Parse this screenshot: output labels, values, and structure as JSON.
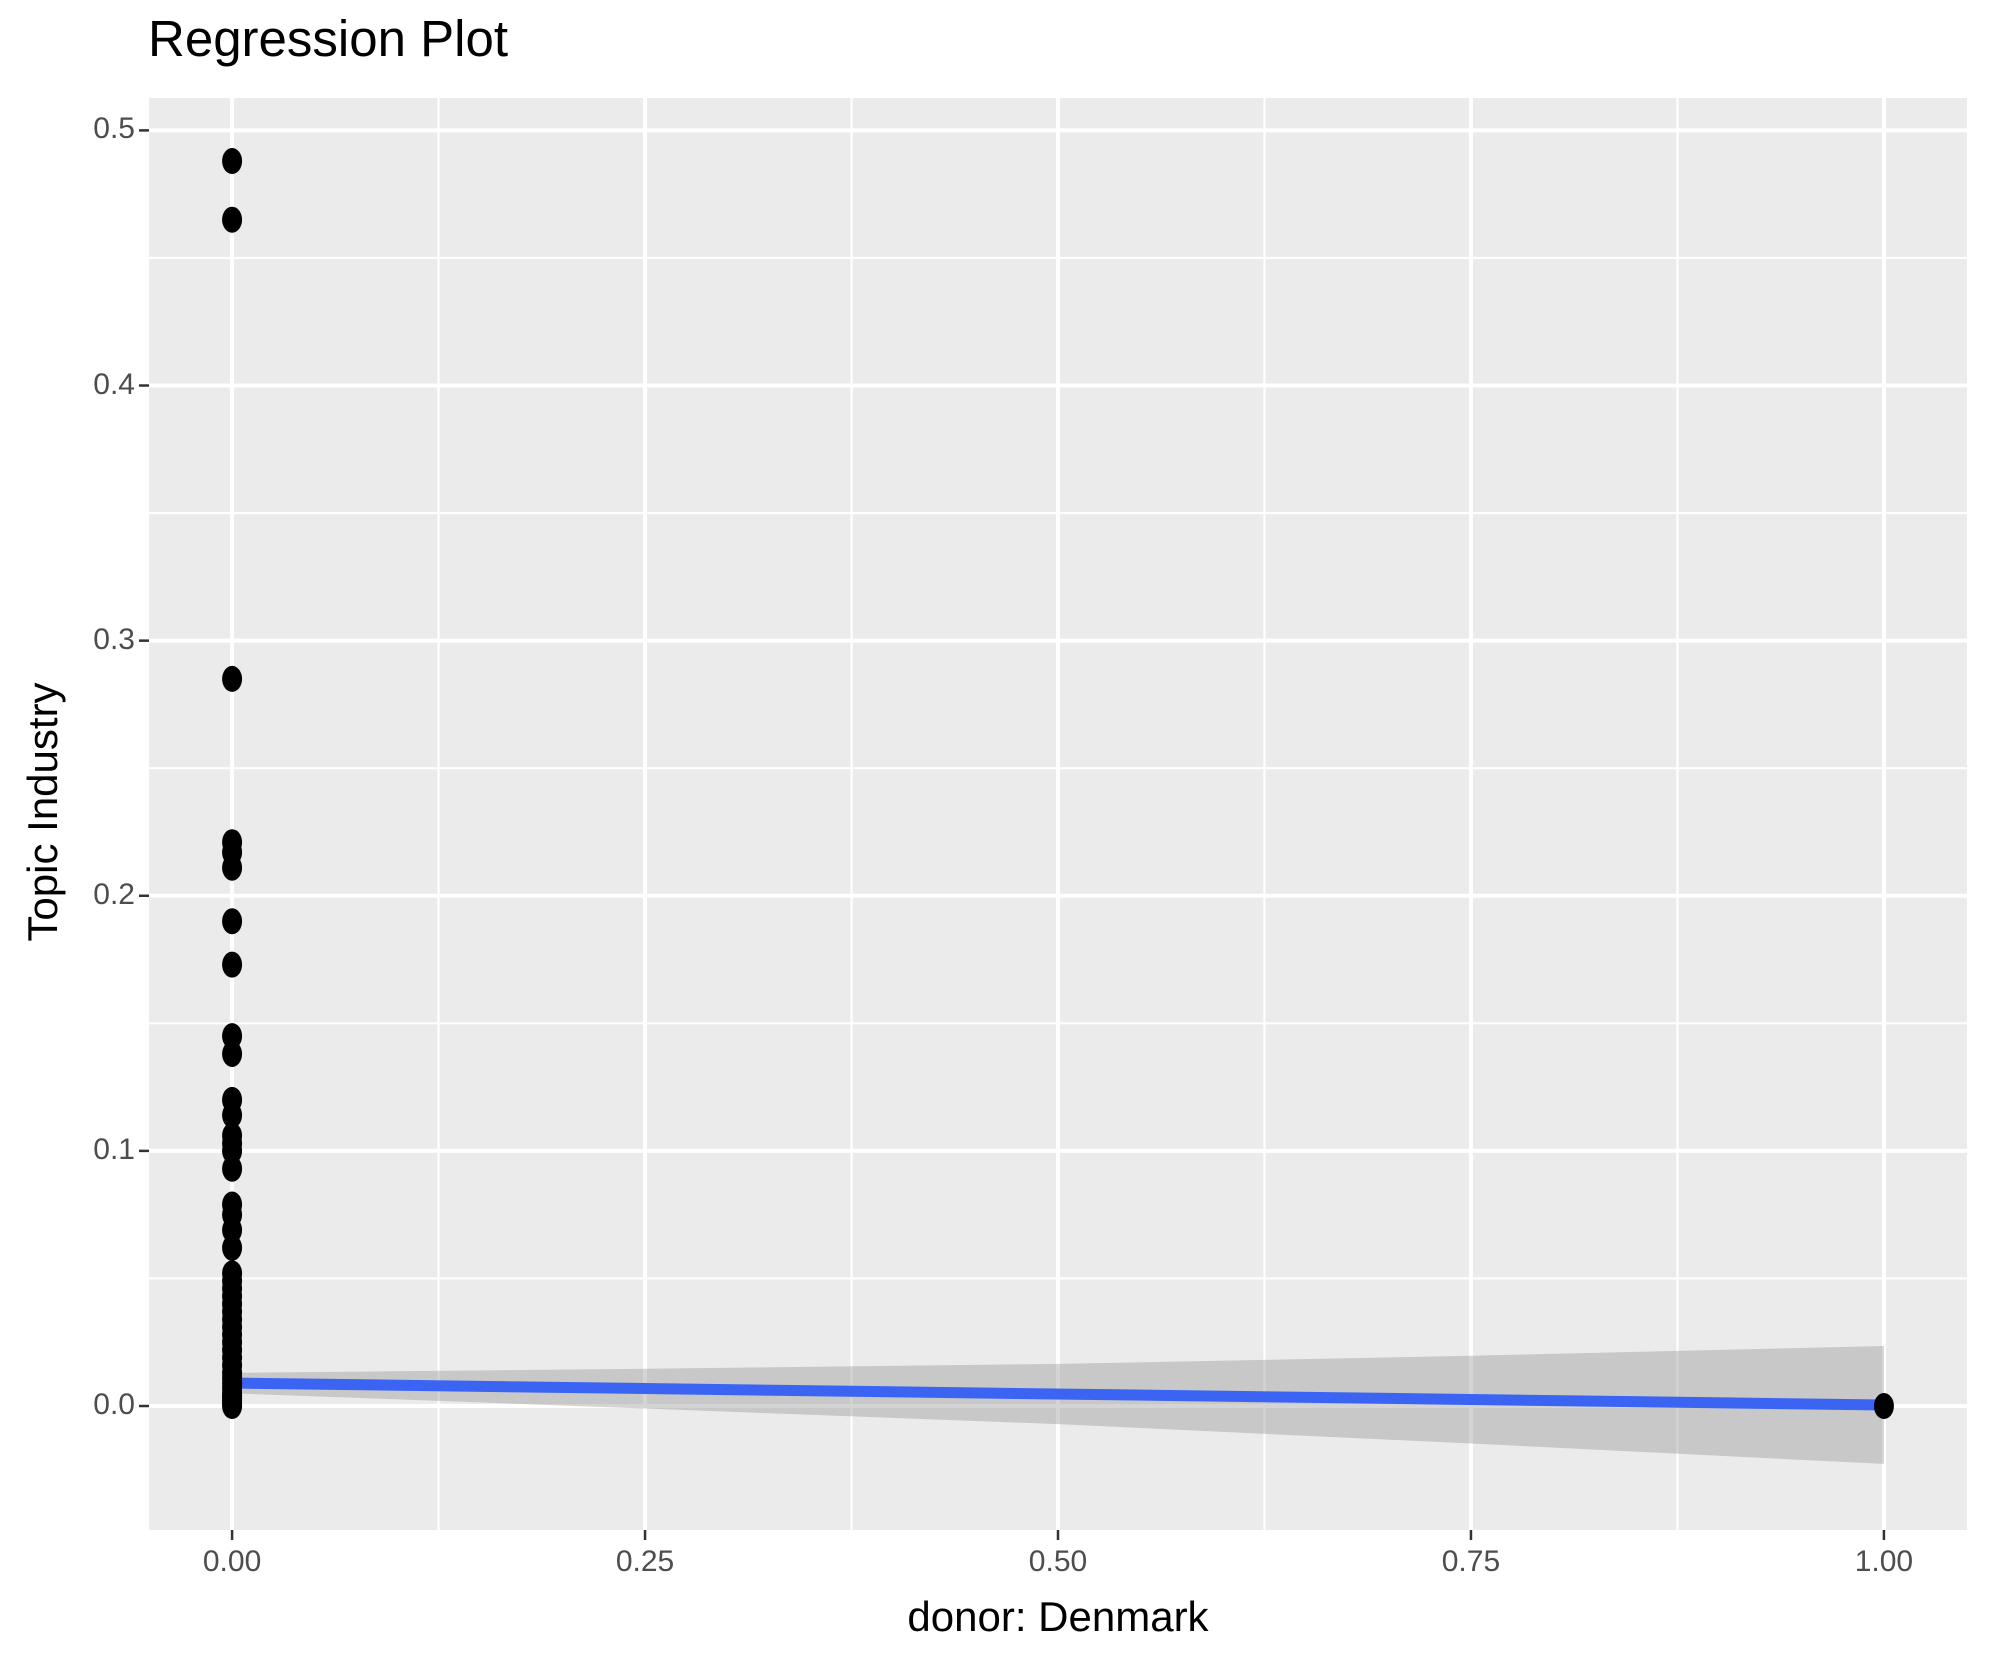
{
  "chart_data": {
    "type": "scatter",
    "title": "Regression Plot",
    "xlabel": "donor: Denmark",
    "ylabel": "Topic Industry",
    "x_ticks": [
      {
        "value": 0.0,
        "label": "0.00"
      },
      {
        "value": 0.25,
        "label": "0.25"
      },
      {
        "value": 0.5,
        "label": "0.50"
      },
      {
        "value": 0.75,
        "label": "0.75"
      },
      {
        "value": 1.0,
        "label": "1.00"
      }
    ],
    "y_ticks": [
      {
        "value": 0.0,
        "label": "0.0"
      },
      {
        "value": 0.1,
        "label": "0.1"
      },
      {
        "value": 0.2,
        "label": "0.2"
      },
      {
        "value": 0.3,
        "label": "0.3"
      },
      {
        "value": 0.4,
        "label": "0.4"
      },
      {
        "value": 0.5,
        "label": "0.5"
      }
    ],
    "xlim": [
      -0.0503,
      1.0503
    ],
    "ylim": [
      -0.0486,
      0.5127
    ],
    "grid": true,
    "legend_position": "none",
    "series": [
      {
        "name": "observations",
        "type": "scatter",
        "points": [
          [
            0,
            0.488
          ],
          [
            0,
            0.465
          ],
          [
            0,
            0.285
          ],
          [
            0,
            0.221
          ],
          [
            0,
            0.217
          ],
          [
            0,
            0.211
          ],
          [
            0,
            0.19
          ],
          [
            0,
            0.173
          ],
          [
            0,
            0.145
          ],
          [
            0,
            0.138
          ],
          [
            0,
            0.12
          ],
          [
            0,
            0.114
          ],
          [
            0,
            0.106
          ],
          [
            0,
            0.103
          ],
          [
            0,
            0.1
          ],
          [
            0,
            0.093
          ],
          [
            0,
            0.079
          ],
          [
            0,
            0.075
          ],
          [
            0,
            0.069
          ],
          [
            0,
            0.062
          ],
          [
            0,
            0.052
          ],
          [
            0,
            0.049
          ],
          [
            0,
            0.046
          ],
          [
            0,
            0.043
          ],
          [
            0,
            0.04
          ],
          [
            0,
            0.037
          ],
          [
            0,
            0.034
          ],
          [
            0,
            0.031
          ],
          [
            0,
            0.028
          ],
          [
            0,
            0.025
          ],
          [
            0,
            0.022
          ],
          [
            0,
            0.019
          ],
          [
            0,
            0.016
          ],
          [
            0,
            0.013
          ],
          [
            0,
            0.011
          ],
          [
            0,
            0.009
          ],
          [
            0,
            0.007
          ],
          [
            0,
            0.005
          ],
          [
            0,
            0.004
          ],
          [
            0,
            0.003
          ],
          [
            0,
            0.002
          ],
          [
            0,
            0.001
          ],
          [
            0,
            0.0
          ],
          [
            1,
            0.0
          ]
        ]
      }
    ],
    "regression_line": {
      "x": [
        0,
        1
      ],
      "y": [
        0.009,
        0.0004
      ]
    },
    "confidence_band": {
      "x": [
        0,
        0.25,
        0.5,
        0.75,
        1
      ],
      "upper": [
        0.013,
        0.0146,
        0.0165,
        0.0197,
        0.0235
      ],
      "lower": [
        0.005,
        -0.001,
        -0.0071,
        -0.0147,
        -0.0227
      ]
    },
    "colors": {
      "panel_background": "#EBEBEB",
      "gridline": "#FFFFFF",
      "point": "#000000",
      "regression_line": "#3B64F2",
      "confidence_band": "#999999",
      "confidence_band_opacity": 0.42,
      "tick_label": "#4D4D4D",
      "tick_mark": "#333333",
      "title_text": "#000000"
    }
  }
}
